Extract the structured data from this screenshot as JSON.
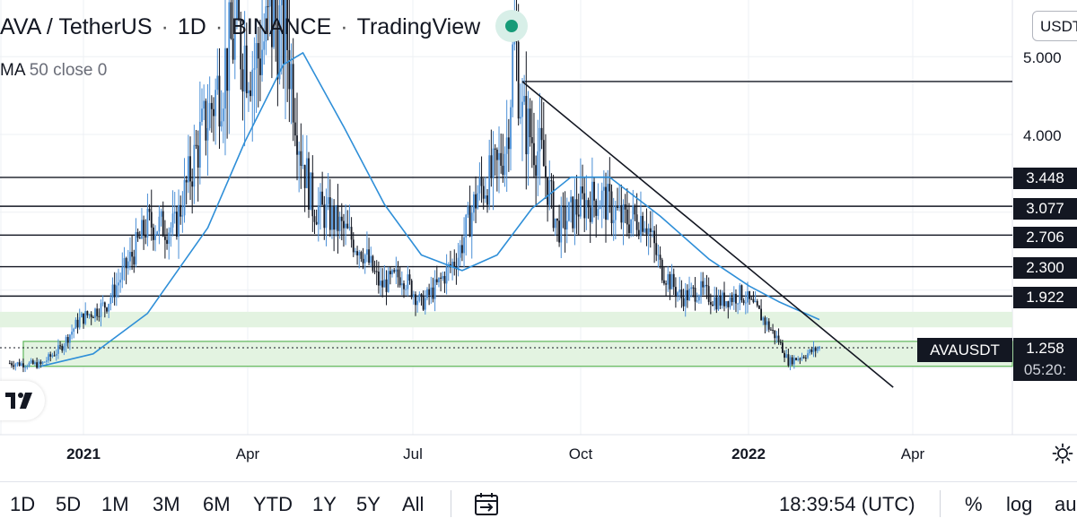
{
  "header": {
    "symbol": "AVA / TetherUS",
    "interval": "1D",
    "exchange": "BINANCE",
    "source": "TradingView"
  },
  "indicator": {
    "name": "MA",
    "params": "50 close 0"
  },
  "currency_button": "USDT",
  "price_axis": [
    {
      "label": "5.000",
      "value": 5.0
    },
    {
      "label": "4.000",
      "value": 4.0
    }
  ],
  "levels": [
    {
      "label": "3.448",
      "value": 3.448
    },
    {
      "label": "3.077",
      "value": 3.077
    },
    {
      "label": "2.706",
      "value": 2.706
    },
    {
      "label": "2.300",
      "value": 2.3
    },
    {
      "label": "1.922",
      "value": 1.922
    }
  ],
  "last_price": {
    "symbol": "AVAUSDT",
    "price": "1.258",
    "countdown": "05:20:"
  },
  "time_axis": [
    {
      "label": "2021",
      "bold": true
    },
    {
      "label": "Apr",
      "bold": false
    },
    {
      "label": "Jul",
      "bold": false
    },
    {
      "label": "Oct",
      "bold": false
    },
    {
      "label": "2022",
      "bold": true
    },
    {
      "label": "Apr",
      "bold": false
    }
  ],
  "toolbar": {
    "ranges": [
      "1D",
      "5D",
      "1M",
      "3M",
      "6M",
      "YTD",
      "1Y",
      "5Y",
      "All"
    ],
    "date_range_icon": "calendar-arrow-icon",
    "clock": "18:39:54 (UTC)",
    "percent": "%",
    "log": "log",
    "auto": "au"
  },
  "colors": {
    "ma_line": "#2f8fd8",
    "candle_up": "#4a8fd6",
    "candle_down": "#131722",
    "zone_fill": "#e3f3e1",
    "zone_border": "#5fb65a",
    "live": "#169b78"
  },
  "chart_data": {
    "type": "candlestick",
    "symbol": "AVAUSDT",
    "interval": "1D",
    "time_start": "2020-12-15",
    "time_end": "2022-02-10",
    "ma_period": 50,
    "horizontal_levels": [
      4.68,
      3.448,
      3.077,
      2.706,
      2.3,
      1.922
    ],
    "zones": [
      {
        "from": 1.52,
        "to": 1.72
      },
      {
        "from": 1.02,
        "to": 1.34
      }
    ],
    "trendline": {
      "from": {
        "date": "2021-09-10",
        "price": 4.68
      },
      "to": {
        "date": "2022-03-20",
        "price": 0.75
      }
    },
    "price_samples": [
      {
        "date": "2020-12-20",
        "price": 1.06
      },
      {
        "date": "2021-01-05",
        "price": 1.04
      },
      {
        "date": "2021-01-15",
        "price": 1.25
      },
      {
        "date": "2021-01-25",
        "price": 1.62
      },
      {
        "date": "2021-02-08",
        "price": 1.82
      },
      {
        "date": "2021-02-18",
        "price": 2.3
      },
      {
        "date": "2021-03-01",
        "price": 2.85
      },
      {
        "date": "2021-03-15",
        "price": 2.8
      },
      {
        "date": "2021-03-28",
        "price": 3.95
      },
      {
        "date": "2021-04-05",
        "price": 4.5
      },
      {
        "date": "2021-04-15",
        "price": 5.3
      },
      {
        "date": "2021-04-25",
        "price": 4.9
      },
      {
        "date": "2021-05-05",
        "price": 5.5
      },
      {
        "date": "2021-05-12",
        "price": 5.2
      },
      {
        "date": "2021-05-19",
        "price": 3.8
      },
      {
        "date": "2021-05-25",
        "price": 3.1
      },
      {
        "date": "2021-06-05",
        "price": 2.9
      },
      {
        "date": "2021-06-20",
        "price": 2.5
      },
      {
        "date": "2021-06-29",
        "price": 2.05
      },
      {
        "date": "2021-07-10",
        "price": 2.2
      },
      {
        "date": "2021-07-20",
        "price": 1.82
      },
      {
        "date": "2021-07-28",
        "price": 2.05
      },
      {
        "date": "2021-08-08",
        "price": 2.45
      },
      {
        "date": "2021-08-18",
        "price": 3.25
      },
      {
        "date": "2021-08-28",
        "price": 3.55
      },
      {
        "date": "2021-09-02",
        "price": 3.95
      },
      {
        "date": "2021-09-06",
        "price": 5.3
      },
      {
        "date": "2021-09-10",
        "price": 4.2
      },
      {
        "date": "2021-09-20",
        "price": 3.7
      },
      {
        "date": "2021-09-28",
        "price": 2.8
      },
      {
        "date": "2021-10-10",
        "price": 3.1
      },
      {
        "date": "2021-10-20",
        "price": 3.2
      },
      {
        "date": "2021-11-01",
        "price": 2.9
      },
      {
        "date": "2021-11-12",
        "price": 2.95
      },
      {
        "date": "2021-11-20",
        "price": 2.3
      },
      {
        "date": "2021-12-01",
        "price": 1.9
      },
      {
        "date": "2021-12-10",
        "price": 2.0
      },
      {
        "date": "2021-12-20",
        "price": 1.85
      },
      {
        "date": "2022-01-01",
        "price": 1.95
      },
      {
        "date": "2022-01-10",
        "price": 1.7
      },
      {
        "date": "2022-01-20",
        "price": 1.35
      },
      {
        "date": "2022-01-25",
        "price": 1.08
      },
      {
        "date": "2022-02-01",
        "price": 1.15
      },
      {
        "date": "2022-02-10",
        "price": 1.258
      }
    ],
    "ma_samples": [
      {
        "date": "2021-01-05",
        "price": 1.02
      },
      {
        "date": "2021-02-01",
        "price": 1.18
      },
      {
        "date": "2021-03-01",
        "price": 1.7
      },
      {
        "date": "2021-04-01",
        "price": 2.8
      },
      {
        "date": "2021-04-20",
        "price": 3.9
      },
      {
        "date": "2021-05-10",
        "price": 4.9
      },
      {
        "date": "2021-05-20",
        "price": 5.05
      },
      {
        "date": "2021-06-10",
        "price": 4.1
      },
      {
        "date": "2021-07-01",
        "price": 3.1
      },
      {
        "date": "2021-07-20",
        "price": 2.45
      },
      {
        "date": "2021-08-10",
        "price": 2.25
      },
      {
        "date": "2021-08-28",
        "price": 2.45
      },
      {
        "date": "2021-09-15",
        "price": 3.05
      },
      {
        "date": "2021-10-05",
        "price": 3.45
      },
      {
        "date": "2021-10-25",
        "price": 3.45
      },
      {
        "date": "2021-11-20",
        "price": 2.95
      },
      {
        "date": "2021-12-15",
        "price": 2.4
      },
      {
        "date": "2022-01-05",
        "price": 2.05
      },
      {
        "date": "2022-01-20",
        "price": 1.85
      },
      {
        "date": "2022-02-10",
        "price": 1.62
      }
    ]
  }
}
